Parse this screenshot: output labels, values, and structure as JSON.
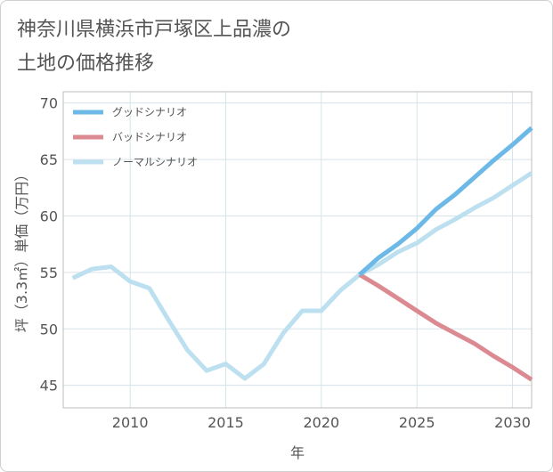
{
  "title": "神奈川県横浜市戸塚区上品濃の\n土地の価格推移",
  "chart_data": {
    "type": "line",
    "xlabel": "年",
    "ylabel": "坪（3.3㎡）単価（万円）",
    "xlim": [
      2006.5,
      2031
    ],
    "ylim": [
      43,
      71
    ],
    "xticks": [
      2010,
      2015,
      2020,
      2025,
      2030
    ],
    "yticks": [
      45,
      50,
      55,
      60,
      65,
      70
    ],
    "grid": true,
    "legend": "top-left",
    "series": [
      {
        "name": "グッドシナリオ",
        "color": "#6cb8e6",
        "x": [
          2022,
          2023,
          2024,
          2025,
          2026,
          2027,
          2028,
          2029,
          2030,
          2031
        ],
        "y": [
          54.8,
          56.3,
          57.5,
          58.9,
          60.6,
          61.9,
          63.4,
          64.9,
          66.3,
          67.8
        ]
      },
      {
        "name": "バッドシナリオ",
        "color": "#dc8a92",
        "x": [
          2022,
          2023,
          2024,
          2025,
          2026,
          2027,
          2028,
          2029,
          2030,
          2031
        ],
        "y": [
          54.8,
          53.8,
          52.7,
          51.6,
          50.5,
          49.6,
          48.7,
          47.6,
          46.6,
          45.5
        ]
      },
      {
        "name": "ノーマルシナリオ",
        "color": "#bde0f0",
        "x": [
          2007,
          2008,
          2009,
          2010,
          2011,
          2012,
          2013,
          2014,
          2015,
          2016,
          2017,
          2018,
          2019,
          2020,
          2021,
          2022,
          2023,
          2024,
          2025,
          2026,
          2027,
          2028,
          2029,
          2030,
          2031
        ],
        "y": [
          54.5,
          55.3,
          55.5,
          54.2,
          53.6,
          50.8,
          48.1,
          46.3,
          46.9,
          45.6,
          46.9,
          49.6,
          51.6,
          51.6,
          53.4,
          54.8,
          55.7,
          56.8,
          57.6,
          58.8,
          59.7,
          60.7,
          61.6,
          62.7,
          63.8
        ]
      }
    ]
  }
}
